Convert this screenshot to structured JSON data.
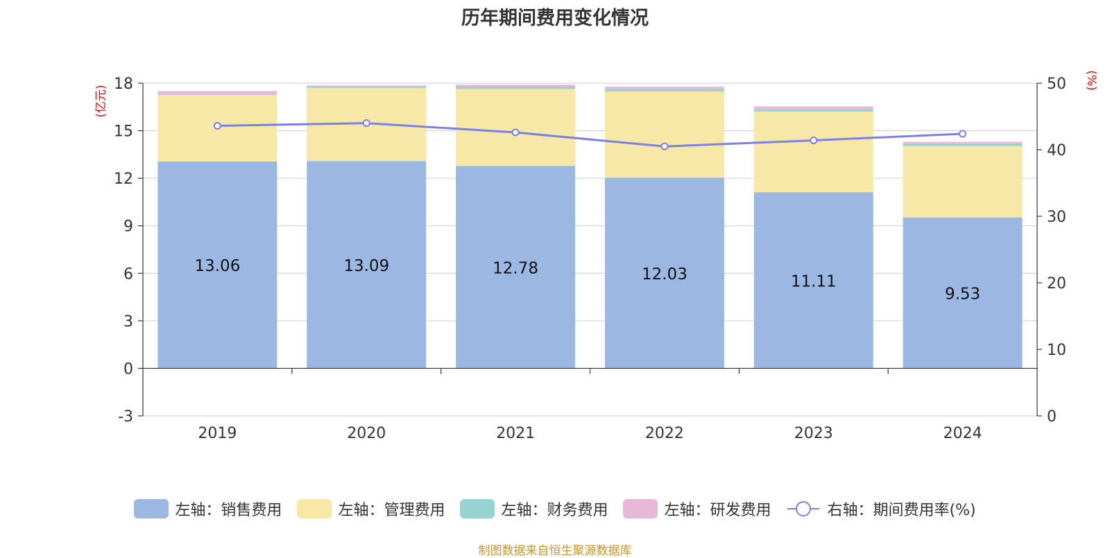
{
  "title": "历年期间费用变化情况",
  "source": "制图数据来自恒生聚源数据库",
  "colors": {
    "sales": "#9bb8e3",
    "admin": "#f8e8a8",
    "finance": "#96d3d2",
    "rd": "#e8b8d8",
    "rate": "#7b7fe8"
  },
  "chart_data": {
    "type": "bar",
    "stacked": true,
    "categories": [
      "2019",
      "2020",
      "2021",
      "2022",
      "2023",
      "2024"
    ],
    "left_axis": {
      "unit": "(亿元)",
      "min": -3,
      "max": 18,
      "ticks": [
        18,
        15,
        12,
        9,
        6,
        3,
        0,
        -3
      ]
    },
    "right_axis": {
      "unit": "(%)",
      "min": 0,
      "max": 50,
      "ticks": [
        50,
        40,
        30,
        20,
        10,
        0
      ]
    },
    "series": [
      {
        "name": "左轴：销售费用",
        "key": "sales",
        "axis": "left",
        "type": "bar",
        "values": [
          13.06,
          13.09,
          12.78,
          12.03,
          11.11,
          9.53
        ],
        "labels": [
          "13.06",
          "13.09",
          "12.78",
          "12.03",
          "11.11",
          "9.53"
        ]
      },
      {
        "name": "左轴：管理费用",
        "key": "admin",
        "axis": "left",
        "type": "bar",
        "values": [
          4.2,
          4.6,
          4.85,
          5.45,
          5.1,
          4.5
        ]
      },
      {
        "name": "左轴：财务费用",
        "key": "finance",
        "axis": "left",
        "type": "bar",
        "values": [
          0.02,
          0.05,
          0.15,
          0.15,
          0.12,
          0.12
        ]
      },
      {
        "name": "左轴：研发费用",
        "key": "rd",
        "axis": "left",
        "type": "bar",
        "values": [
          0.22,
          0.12,
          0.12,
          0.15,
          0.2,
          0.15
        ]
      },
      {
        "name": "右轴：期间费用率(%)",
        "key": "rate",
        "axis": "right",
        "type": "line",
        "values": [
          43.6,
          44.0,
          42.6,
          40.5,
          41.4,
          42.4
        ]
      }
    ],
    "grid": true,
    "legend": "bottom"
  }
}
